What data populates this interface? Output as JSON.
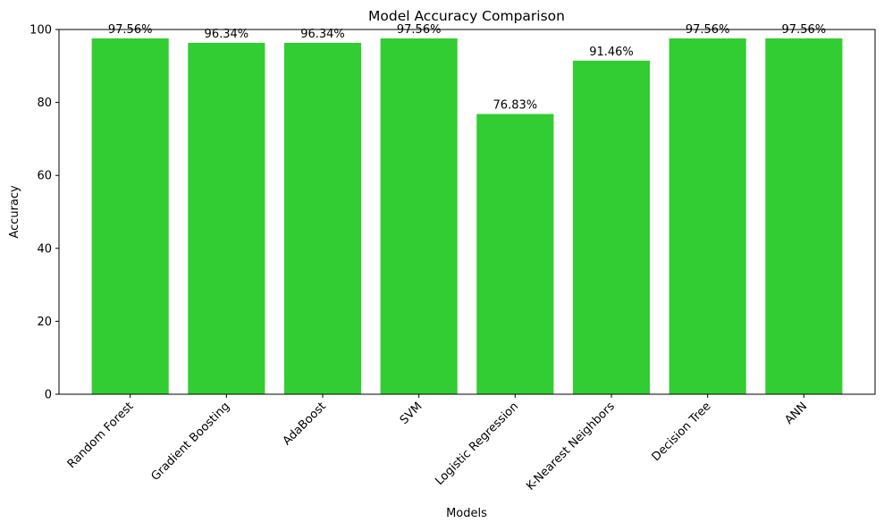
{
  "chart_data": {
    "type": "bar",
    "title": "Model Accuracy Comparison",
    "xlabel": "Models",
    "ylabel": "Accuracy",
    "categories": [
      "Random Forest",
      "Gradient Boosting",
      "AdaBoost",
      "SVM",
      "Logistic Regression",
      "K-Nearest Neighbors",
      "Decision Tree",
      "ANN"
    ],
    "values": [
      97.56,
      96.34,
      96.34,
      97.56,
      76.83,
      91.46,
      97.56,
      97.56
    ],
    "value_labels": [
      "97.56%",
      "96.34%",
      "96.34%",
      "97.56%",
      "76.83%",
      "91.46%",
      "97.56%",
      "97.56%"
    ],
    "ylim": [
      0,
      100
    ],
    "yticks": [
      0,
      20,
      40,
      60,
      80,
      100
    ],
    "bar_color": "#32cd32",
    "grid": false,
    "legend": "none"
  }
}
